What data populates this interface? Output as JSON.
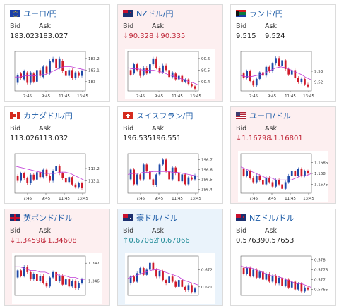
{
  "cards": [
    {
      "pair": "ユーロ/円",
      "flag": "eu",
      "bg": "white",
      "dir": "none",
      "bid": "183.023",
      "ask": "183.027",
      "chart_data": {
        "type": "candlestick",
        "x_ticks": [
          "7:45",
          "9:45",
          "11:45",
          "13:45"
        ],
        "y_ticks": [
          "183.2",
          "183.1",
          "183"
        ],
        "ylim": [
          182.92,
          183.26
        ],
        "candles": [
          [
            182.99,
            183.06
          ],
          [
            183.07,
            183.03
          ],
          [
            183.02,
            183.09
          ],
          [
            183.08,
            182.99
          ],
          [
            182.99,
            183.08
          ],
          [
            183.07,
            183.0
          ],
          [
            183.0,
            183.1
          ],
          [
            183.1,
            183.05
          ],
          [
            183.04,
            183.13
          ],
          [
            183.13,
            183.07
          ],
          [
            183.07,
            183.18
          ],
          [
            183.17,
            183.2
          ],
          [
            183.2,
            183.12
          ],
          [
            183.12,
            183.2
          ],
          [
            183.18,
            183.09
          ],
          [
            183.09,
            183.05
          ],
          [
            183.05,
            183.1
          ],
          [
            183.1,
            183.03
          ],
          [
            183.03,
            183.08
          ],
          [
            183.08,
            183.05
          ],
          [
            183.05,
            183.09
          ]
        ],
        "ma": [
          183.04,
          183.04,
          183.05,
          183.05,
          183.05,
          183.06,
          183.06,
          183.08,
          183.1,
          183.12,
          183.13,
          183.13,
          183.12,
          183.11,
          183.1
        ]
      }
    },
    {
      "pair": "NZドル/円",
      "flag": "nz",
      "bg": "pink",
      "dir": "down",
      "bid": "90.328",
      "ask": "90.335",
      "chart_data": {
        "type": "candlestick",
        "x_ticks": [
          "7:45",
          "9:45",
          "11:45",
          "13:45"
        ],
        "y_ticks": [
          "90.6",
          "90.5",
          "90.4"
        ],
        "ylim": [
          90.32,
          90.66
        ],
        "candles": [
          [
            90.5,
            90.46
          ],
          [
            90.47,
            90.55
          ],
          [
            90.55,
            90.5
          ],
          [
            90.5,
            90.45
          ],
          [
            90.46,
            90.52
          ],
          [
            90.52,
            90.47
          ],
          [
            90.47,
            90.55
          ],
          [
            90.55,
            90.6
          ],
          [
            90.6,
            90.52
          ],
          [
            90.52,
            90.48
          ],
          [
            90.48,
            90.54
          ],
          [
            90.54,
            90.5
          ],
          [
            90.5,
            90.44
          ],
          [
            90.44,
            90.48
          ],
          [
            90.47,
            90.42
          ],
          [
            90.42,
            90.45
          ],
          [
            90.45,
            90.4
          ],
          [
            90.4,
            90.42
          ],
          [
            90.42,
            90.38
          ],
          [
            90.38,
            90.36
          ],
          [
            90.36,
            90.34
          ]
        ],
        "ma": [
          90.52,
          90.51,
          90.51,
          90.5,
          90.5,
          90.5,
          90.49,
          90.48,
          90.46,
          90.45,
          90.43,
          90.42,
          90.4,
          90.39,
          90.37
        ]
      }
    },
    {
      "pair": "ランド/円",
      "flag": "za",
      "bg": "white",
      "dir": "none",
      "bid": "9.515",
      "ask": "9.524",
      "chart_data": {
        "type": "candlestick",
        "x_ticks": [
          "7:45",
          "9:45",
          "11:45",
          "13:45"
        ],
        "y_ticks": [
          "9.53",
          "9.52"
        ],
        "ylim": [
          9.512,
          9.548
        ],
        "candles": [
          [
            9.528,
            9.524
          ],
          [
            9.524,
            9.53
          ],
          [
            9.53,
            9.521
          ],
          [
            9.521,
            9.517
          ],
          [
            9.517,
            9.523
          ],
          [
            9.523,
            9.529
          ],
          [
            9.529,
            9.526
          ],
          [
            9.526,
            9.534
          ],
          [
            9.534,
            9.53
          ],
          [
            9.53,
            9.537
          ],
          [
            9.537,
            9.542
          ],
          [
            9.542,
            9.535
          ],
          [
            9.535,
            9.54
          ],
          [
            9.54,
            9.532
          ],
          [
            9.532,
            9.527
          ],
          [
            9.527,
            9.531
          ],
          [
            9.531,
            9.524
          ],
          [
            9.524,
            9.52
          ],
          [
            9.52,
            9.523
          ],
          [
            9.523,
            9.518
          ],
          [
            9.518,
            9.516
          ]
        ],
        "ma": [
          9.526,
          9.525,
          9.525,
          9.526,
          9.527,
          9.529,
          9.531,
          9.533,
          9.534,
          9.533,
          9.531,
          9.529,
          9.527,
          9.524,
          9.522
        ]
      }
    },
    {
      "pair": "カナダドル/円",
      "flag": "ca",
      "bg": "white",
      "dir": "none",
      "bid": "113.026",
      "ask": "113.032",
      "chart_data": {
        "type": "candlestick",
        "x_ticks": [
          "7:45",
          "9:45",
          "11:45",
          "13:45"
        ],
        "y_ticks": [
          "113.2",
          "113.1"
        ],
        "ylim": [
          113.0,
          113.32
        ],
        "candles": [
          [
            113.14,
            113.1
          ],
          [
            113.1,
            113.16
          ],
          [
            113.16,
            113.12
          ],
          [
            113.12,
            113.08
          ],
          [
            113.08,
            113.15
          ],
          [
            113.15,
            113.11
          ],
          [
            113.11,
            113.17
          ],
          [
            113.17,
            113.13
          ],
          [
            113.13,
            113.19
          ],
          [
            113.19,
            113.14
          ],
          [
            113.14,
            113.1
          ],
          [
            113.1,
            113.18
          ],
          [
            113.18,
            113.22
          ],
          [
            113.22,
            113.16
          ],
          [
            113.16,
            113.12
          ],
          [
            113.12,
            113.09
          ],
          [
            113.09,
            113.13
          ],
          [
            113.13,
            113.07
          ],
          [
            113.07,
            113.05
          ],
          [
            113.05,
            113.08
          ],
          [
            113.08,
            113.04
          ]
        ],
        "ma": [
          113.22,
          113.21,
          113.2,
          113.19,
          113.18,
          113.17,
          113.16,
          113.16,
          113.16,
          113.17,
          113.17,
          113.16,
          113.14,
          113.12,
          113.1
        ]
      }
    },
    {
      "pair": "スイスフラン/円",
      "flag": "ch",
      "bg": "white",
      "dir": "none",
      "bid": "196.535",
      "ask": "196.551",
      "chart_data": {
        "type": "candlestick",
        "x_ticks": [
          "7:45",
          "9:45",
          "11:45",
          "13:45"
        ],
        "y_ticks": [
          "196.7",
          "196.6",
          "196.5",
          "196.4"
        ],
        "ylim": [
          196.36,
          196.76
        ],
        "candles": [
          [
            196.5,
            196.6
          ],
          [
            196.6,
            196.45
          ],
          [
            196.45,
            196.55
          ],
          [
            196.55,
            196.5
          ],
          [
            196.5,
            196.65
          ],
          [
            196.65,
            196.58
          ],
          [
            196.58,
            196.5
          ],
          [
            196.5,
            196.44
          ],
          [
            196.44,
            196.55
          ],
          [
            196.55,
            196.65
          ],
          [
            196.65,
            196.7
          ],
          [
            196.7,
            196.58
          ],
          [
            196.58,
            196.5
          ],
          [
            196.5,
            196.62
          ],
          [
            196.62,
            196.56
          ],
          [
            196.56,
            196.48
          ],
          [
            196.48,
            196.55
          ],
          [
            196.55,
            196.45
          ],
          [
            196.45,
            196.52
          ],
          [
            196.52,
            196.5
          ],
          [
            196.5,
            196.54
          ]
        ],
        "ma": [
          196.55,
          196.56,
          196.56,
          196.57,
          196.57,
          196.58,
          196.58,
          196.58,
          196.58,
          196.57,
          196.57,
          196.56,
          196.55,
          196.54,
          196.53
        ]
      }
    },
    {
      "pair": "ユーロ/ドル",
      "flag": "us",
      "bg": "pink",
      "dir": "down",
      "bid": "1.16798",
      "ask": "1.16801",
      "chart_data": {
        "type": "candlestick",
        "x_ticks": [
          "7:45",
          "9:45",
          "11:45",
          "13:45"
        ],
        "y_ticks": [
          "1.1685",
          "1.168",
          "1.1675"
        ],
        "ylim": [
          1.1671,
          1.1689
        ],
        "candles": [
          [
            1.1682,
            1.1679
          ],
          [
            1.1679,
            1.1681
          ],
          [
            1.1681,
            1.1678
          ],
          [
            1.1678,
            1.1676
          ],
          [
            1.1676,
            1.1679
          ],
          [
            1.1679,
            1.1677
          ],
          [
            1.1677,
            1.1675
          ],
          [
            1.1675,
            1.1678
          ],
          [
            1.1678,
            1.1676
          ],
          [
            1.1676,
            1.1674
          ],
          [
            1.1674,
            1.1677
          ],
          [
            1.1677,
            1.1675
          ],
          [
            1.1675,
            1.1673
          ],
          [
            1.1673,
            1.1676
          ],
          [
            1.1676,
            1.1679
          ],
          [
            1.1679,
            1.1681
          ],
          [
            1.1681,
            1.1679
          ],
          [
            1.1679,
            1.1682
          ],
          [
            1.1682,
            1.1679
          ],
          [
            1.1679,
            1.1681
          ],
          [
            1.1681,
            1.168
          ]
        ],
        "ma": [
          1.1683,
          1.1682,
          1.1681,
          1.168,
          1.1679,
          1.1678,
          1.1678,
          1.1677,
          1.1677,
          1.1677,
          1.1677,
          1.1678,
          1.1679,
          1.1679,
          1.168
        ]
      }
    },
    {
      "pair": "英ポンド/ドル",
      "flag": "gb",
      "bg": "pink",
      "dir": "down",
      "bid": "1.34598",
      "ask": "1.34608",
      "chart_data": {
        "type": "candlestick",
        "x_ticks": [],
        "y_ticks": [
          "1.347",
          "1.346"
        ],
        "ylim": [
          1.3452,
          1.3474
        ],
        "candles": [
          [
            1.3462,
            1.3466
          ],
          [
            1.3466,
            1.3463
          ],
          [
            1.3463,
            1.3468
          ],
          [
            1.3468,
            1.3465
          ],
          [
            1.3465,
            1.3461
          ],
          [
            1.3461,
            1.3464
          ],
          [
            1.3464,
            1.346
          ],
          [
            1.346,
            1.3463
          ],
          [
            1.3463,
            1.3459
          ],
          [
            1.3459,
            1.3457
          ],
          [
            1.3457,
            1.3462
          ],
          [
            1.3462,
            1.3465
          ],
          [
            1.3465,
            1.346
          ],
          [
            1.346,
            1.3463
          ],
          [
            1.3463,
            1.3458
          ],
          [
            1.3458,
            1.3461
          ],
          [
            1.3461,
            1.3457
          ],
          [
            1.3457,
            1.346
          ],
          [
            1.346,
            1.3456
          ],
          [
            1.3456,
            1.3459
          ],
          [
            1.3459,
            1.3461
          ]
        ],
        "ma": [
          1.3468,
          1.3468,
          1.3467,
          1.3466,
          1.3466,
          1.3465,
          1.3465,
          1.3464,
          1.3464,
          1.3463,
          1.3463,
          1.3462,
          1.3462,
          1.3461,
          1.3461
        ]
      }
    },
    {
      "pair": "豪ドル/ドル",
      "flag": "au",
      "bg": "blue",
      "dir": "up",
      "bid": "0.67062",
      "ask": "0.67066",
      "chart_data": {
        "type": "candlestick",
        "x_ticks": [],
        "y_ticks": [
          "0.672",
          "0.671"
        ],
        "ylim": [
          0.6705,
          0.6728
        ],
        "candles": [
          [
            0.6712,
            0.6716
          ],
          [
            0.6716,
            0.6713
          ],
          [
            0.6713,
            0.6718
          ],
          [
            0.6718,
            0.6721
          ],
          [
            0.6721,
            0.6717
          ],
          [
            0.6717,
            0.672
          ],
          [
            0.672,
            0.6724
          ],
          [
            0.6724,
            0.672
          ],
          [
            0.672,
            0.6716
          ],
          [
            0.6716,
            0.6719
          ],
          [
            0.6719,
            0.6714
          ],
          [
            0.6714,
            0.6712
          ],
          [
            0.6712,
            0.6716
          ],
          [
            0.6716,
            0.6713
          ],
          [
            0.6713,
            0.671
          ],
          [
            0.671,
            0.6714
          ],
          [
            0.6714,
            0.671
          ],
          [
            0.671,
            0.6708
          ],
          [
            0.6708,
            0.6711
          ],
          [
            0.6711,
            0.6707
          ],
          [
            0.6707,
            0.6709
          ]
        ],
        "ma": [
          0.6715,
          0.6716,
          0.6717,
          0.6718,
          0.6719,
          0.672,
          0.672,
          0.6719,
          0.6718,
          0.6717,
          0.6716,
          0.6714,
          0.6713,
          0.6712,
          0.6711
        ]
      }
    },
    {
      "pair": "NZドル/ドル",
      "flag": "nz",
      "bg": "white",
      "dir": "none",
      "bid": "0.57639",
      "ask": "0.57653",
      "chart_data": {
        "type": "candlestick",
        "x_ticks": [],
        "y_ticks": [
          "0.578",
          "0.5775",
          "0.577",
          "0.5765"
        ],
        "ylim": [
          0.5762,
          0.5782
        ],
        "candles": [
          [
            0.5776,
            0.5773
          ],
          [
            0.5773,
            0.5776
          ],
          [
            0.5776,
            0.5772
          ],
          [
            0.5772,
            0.5775
          ],
          [
            0.5775,
            0.5771
          ],
          [
            0.5771,
            0.5774
          ],
          [
            0.5774,
            0.577
          ],
          [
            0.577,
            0.5773
          ],
          [
            0.5773,
            0.5769
          ],
          [
            0.5769,
            0.5772
          ],
          [
            0.5772,
            0.5768
          ],
          [
            0.5768,
            0.5771
          ],
          [
            0.5771,
            0.5767
          ],
          [
            0.5767,
            0.577
          ],
          [
            0.577,
            0.5766
          ],
          [
            0.5766,
            0.5769
          ],
          [
            0.5769,
            0.5765
          ],
          [
            0.5765,
            0.5768
          ],
          [
            0.5768,
            0.5764
          ],
          [
            0.5764,
            0.5766
          ],
          [
            0.5766,
            0.5765
          ]
        ],
        "ma": [
          0.5777,
          0.5776,
          0.5776,
          0.5775,
          0.5774,
          0.5773,
          0.5772,
          0.5772,
          0.5771,
          0.577,
          0.5769,
          0.5768,
          0.5768,
          0.5767,
          0.5766
        ]
      }
    }
  ],
  "labels": {
    "bid": "Bid",
    "ask": "Ask"
  },
  "arrows": {
    "down": "↓",
    "up": "↑"
  },
  "colors": {
    "bull": "#1f4aa8",
    "bear": "#d11a2a",
    "ma": "#c03bd6",
    "title": "#1a5aa6",
    "down_value": "#c0283a",
    "up_value": "#1e8a96"
  }
}
